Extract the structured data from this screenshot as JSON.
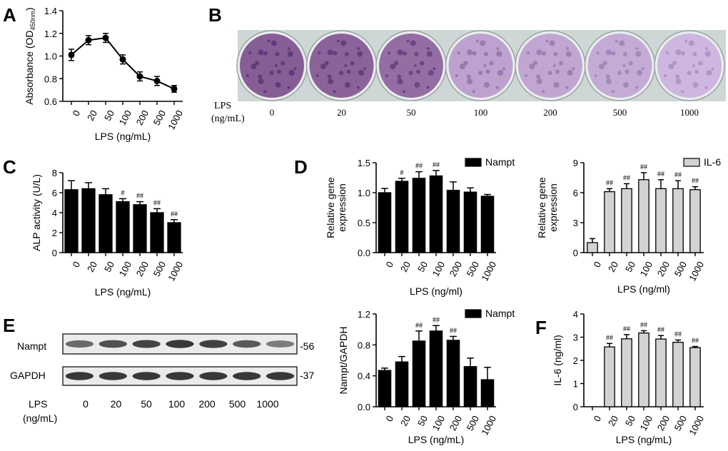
{
  "panel_labels": {
    "A": "A",
    "B": "B",
    "C": "C",
    "D": "D",
    "E": "E",
    "F": "F"
  },
  "lps_axis_label_mL": "LPS (ng/mL)",
  "lps_axis_label_ml": "LPS (ng/ml)",
  "lps_categories": [
    "0",
    "20",
    "50",
    "100",
    "200",
    "500",
    "1000"
  ],
  "panel_b": {
    "lps_label_line1": "LPS",
    "lps_label_line2": "(ng/mL)",
    "stain_intensity": [
      1.0,
      0.95,
      0.85,
      0.35,
      0.3,
      0.25,
      0.15
    ]
  },
  "panel_e": {
    "band1_name": "Nampt",
    "band2_name": "GAPDH",
    "band1_kda": "-56",
    "band2_kda": "-37",
    "lps_label_line1": "LPS",
    "lps_label_line2": "(ng/mL)",
    "nampt_band_intensity": [
      0.55,
      0.7,
      0.78,
      0.85,
      0.8,
      0.65,
      0.45
    ],
    "gapdh_band_intensity": [
      0.85,
      0.85,
      0.85,
      0.85,
      0.85,
      0.85,
      0.85
    ]
  },
  "chart_data": [
    {
      "panel": "A",
      "type": "line",
      "ylabel_main": "Absorbance (OD",
      "ylabel_sub": "450nm",
      "ylabel_end": ")",
      "xlabel": "LPS (ng/mL)",
      "categories": [
        "0",
        "20",
        "50",
        "100",
        "200",
        "500",
        "1000"
      ],
      "values": [
        1.01,
        1.14,
        1.16,
        0.97,
        0.82,
        0.78,
        0.71
      ],
      "errors": [
        0.05,
        0.04,
        0.04,
        0.04,
        0.04,
        0.04,
        0.03
      ],
      "ylim": [
        0.6,
        1.4
      ],
      "yticks": [
        "0.6",
        "0.8",
        "1.0",
        "1.2",
        "1.4"
      ],
      "color": "#000000"
    },
    {
      "panel": "C",
      "type": "bar",
      "ylabel": "ALP activity (U/L)",
      "xlabel": "LPS (ng/mL)",
      "categories": [
        "0",
        "20",
        "50",
        "100",
        "200",
        "500",
        "1000"
      ],
      "values": [
        6.3,
        6.4,
        5.8,
        5.1,
        4.8,
        4.0,
        3.0
      ],
      "errors": [
        0.9,
        0.6,
        0.6,
        0.3,
        0.3,
        0.4,
        0.3
      ],
      "annotations": [
        "",
        "",
        "",
        "#",
        "##",
        "##",
        "##"
      ],
      "ylim": [
        0,
        8
      ],
      "yticks": [
        "0",
        "2",
        "4",
        "6",
        "8"
      ],
      "bar_color": "#000000"
    },
    {
      "panel": "D-left",
      "type": "bar",
      "ylabel_line1": "Relative gene",
      "ylabel_line2": "expression",
      "xlabel": "LPS (ng/ml)",
      "legend": "Nampt",
      "categories": [
        "0",
        "20",
        "50",
        "100",
        "200",
        "500",
        "1000"
      ],
      "values": [
        1.0,
        1.19,
        1.24,
        1.28,
        1.04,
        1.01,
        0.94
      ],
      "errors": [
        0.07,
        0.05,
        0.11,
        0.09,
        0.14,
        0.07,
        0.03
      ],
      "annotations": [
        "",
        "#",
        "##",
        "##",
        "",
        "",
        ""
      ],
      "ylim": [
        0,
        1.5
      ],
      "yticks": [
        "0.0",
        "0.5",
        "1.0",
        "1.5"
      ],
      "bar_color": "#000000"
    },
    {
      "panel": "D-right",
      "type": "bar",
      "ylabel_line1": "Relative gene",
      "ylabel_line2": "expression",
      "xlabel": "LPS (ng/ml)",
      "legend": "IL-6",
      "categories": [
        "0",
        "20",
        "50",
        "100",
        "200",
        "500",
        "1000"
      ],
      "values": [
        1.0,
        6.1,
        6.4,
        7.3,
        6.4,
        6.4,
        6.3
      ],
      "errors": [
        0.4,
        0.3,
        0.5,
        0.7,
        0.9,
        0.8,
        0.3
      ],
      "annotations": [
        "",
        "##",
        "##",
        "##",
        "##",
        "##",
        "##"
      ],
      "ylim": [
        0,
        9
      ],
      "yticks": [
        "0",
        "3",
        "6",
        "9"
      ],
      "bar_color": "#d3d3d3"
    },
    {
      "panel": "E-right",
      "type": "bar",
      "ylabel": "Nampt/GAPDH",
      "xlabel": "LPS (ng/mL)",
      "legend": "Nampt",
      "categories": [
        "0",
        "20",
        "50",
        "100",
        "200",
        "500",
        "1000"
      ],
      "values": [
        0.47,
        0.58,
        0.85,
        0.98,
        0.86,
        0.52,
        0.35
      ],
      "errors": [
        0.03,
        0.07,
        0.13,
        0.07,
        0.05,
        0.11,
        0.16
      ],
      "annotations": [
        "",
        "",
        "##",
        "##",
        "##",
        "",
        ""
      ],
      "ylim": [
        0,
        1.2
      ],
      "yticks": [
        "0.0",
        "0.4",
        "0.8",
        "1.2"
      ],
      "bar_color": "#000000"
    },
    {
      "panel": "F",
      "type": "bar",
      "ylabel": "IL-6 (ng/ml)",
      "xlabel": "LPS (ng/mL)",
      "categories": [
        "0",
        "20",
        "50",
        "100",
        "200",
        "500",
        "1000"
      ],
      "values": [
        0,
        2.58,
        2.93,
        3.18,
        2.92,
        2.78,
        2.55
      ],
      "errors": [
        0,
        0.15,
        0.18,
        0.1,
        0.15,
        0.1,
        0.05
      ],
      "annotations": [
        "",
        "##",
        "##",
        "##",
        "##",
        "##",
        "##"
      ],
      "ylim": [
        0,
        4
      ],
      "yticks": [
        "0",
        "1",
        "2",
        "3",
        "4"
      ],
      "bar_color": "#d3d3d3"
    }
  ]
}
